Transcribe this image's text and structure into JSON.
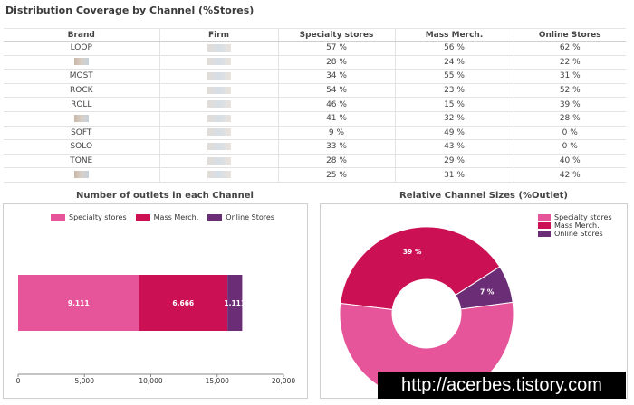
{
  "page_title": "Distribution Coverage by Channel (%Stores)",
  "table": {
    "columns": [
      "Brand",
      "Firm",
      "Specialty stores",
      "Mass Merch.",
      "Online Stores"
    ],
    "rows": [
      {
        "brand": "LOOP",
        "specialty": "57 %",
        "mass": "56 %",
        "online": "62 %"
      },
      {
        "brand": "",
        "specialty": "28 %",
        "mass": "24 %",
        "online": "22 %"
      },
      {
        "brand": "MOST",
        "specialty": "34 %",
        "mass": "55 %",
        "online": "31 %"
      },
      {
        "brand": "ROCK",
        "specialty": "54 %",
        "mass": "23 %",
        "online": "52 %"
      },
      {
        "brand": "ROLL",
        "specialty": "46 %",
        "mass": "15 %",
        "online": "39 %"
      },
      {
        "brand": "",
        "specialty": "41 %",
        "mass": "32 %",
        "online": "28 %"
      },
      {
        "brand": "SOFT",
        "specialty": "9 %",
        "mass": "49 %",
        "online": "0 %"
      },
      {
        "brand": "SOLO",
        "specialty": "33 %",
        "mass": "43 %",
        "online": "0 %"
      },
      {
        "brand": "TONE",
        "specialty": "28 %",
        "mass": "29 %",
        "online": "40 %"
      },
      {
        "brand": "",
        "specialty": "25 %",
        "mass": "31 %",
        "online": "42 %"
      }
    ]
  },
  "chart_data": [
    {
      "type": "bar",
      "orientation": "horizontal-stacked",
      "title": "Number of outlets in each Channel",
      "legend_position": "top",
      "series": [
        {
          "name": "Specialty stores",
          "values": [
            9111
          ],
          "color": "#e6549a",
          "label": "9,111"
        },
        {
          "name": "Mass Merch.",
          "values": [
            6666
          ],
          "color": "#cc1054",
          "label": "6,666"
        },
        {
          "name": "Online Stores",
          "values": [
            1111
          ],
          "color": "#6b2d75",
          "label": "1,111"
        }
      ],
      "xlim": [
        0,
        20000
      ],
      "xticks": [
        0,
        5000,
        10000,
        15000,
        20000
      ],
      "xtick_labels": [
        "0",
        "5,000",
        "10,000",
        "15,000",
        "20,000"
      ]
    },
    {
      "type": "pie",
      "style": "donut",
      "title": "Relative Channel Sizes (%Outlet)",
      "legend_position": "top-right",
      "slices": [
        {
          "name": "Specialty stores",
          "value": 54,
          "label": "54 %",
          "color": "#e6549a"
        },
        {
          "name": "Mass Merch.",
          "value": 39,
          "label": "39 %",
          "color": "#cc1054"
        },
        {
          "name": "Online Stores",
          "value": 7,
          "label": "7 %",
          "color": "#6b2d75"
        }
      ]
    }
  ],
  "watermark": "http://acerbes.tistory.com"
}
